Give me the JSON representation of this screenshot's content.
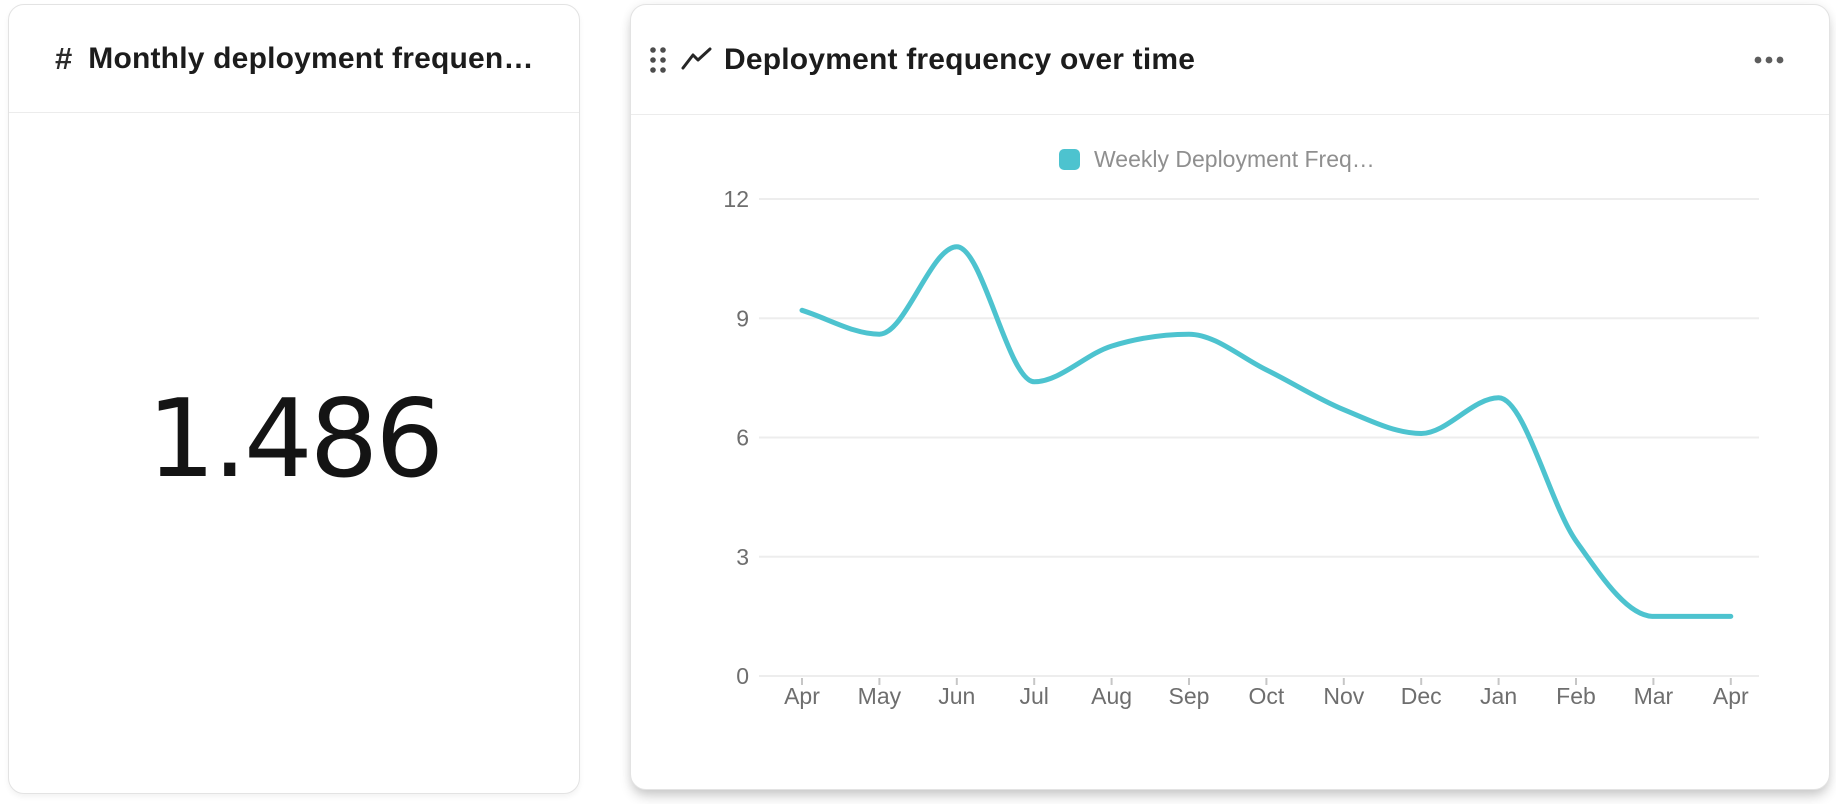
{
  "kpi_card": {
    "icon_glyph": "#",
    "title": "Monthly deployment frequen…",
    "value": "1.486"
  },
  "chart_card": {
    "title": "Deployment frequency over time",
    "legend_label": "Weekly Deployment Freq…"
  },
  "chart_data": {
    "type": "line",
    "title": "Deployment frequency over time",
    "categories": [
      "Apr",
      "May",
      "Jun",
      "Jul",
      "Aug",
      "Sep",
      "Oct",
      "Nov",
      "Dec",
      "Jan",
      "Feb",
      "Mar",
      "Apr"
    ],
    "series": [
      {
        "name": "Weekly Deployment Freq…",
        "color": "#4dc3cf",
        "values": [
          9.2,
          8.6,
          10.8,
          7.4,
          8.3,
          8.6,
          7.7,
          6.7,
          6.1,
          7.0,
          3.4,
          1.5,
          1.5
        ]
      }
    ],
    "y_ticks": [
      0,
      3,
      6,
      9,
      12
    ],
    "ylim": [
      0,
      12
    ],
    "xlabel": "",
    "ylabel": "",
    "grid": true,
    "legend_position": "top",
    "line_smoothing": "monotone"
  },
  "colors": {
    "accent_teal": "#4dc3cf",
    "title_text": "#1c1c1c",
    "axis_text": "#6e6e6e",
    "legend_text": "#8f8f8f",
    "grid_line": "#ededed",
    "card_border": "#e3e3e3",
    "card_background": "#ffffff"
  }
}
